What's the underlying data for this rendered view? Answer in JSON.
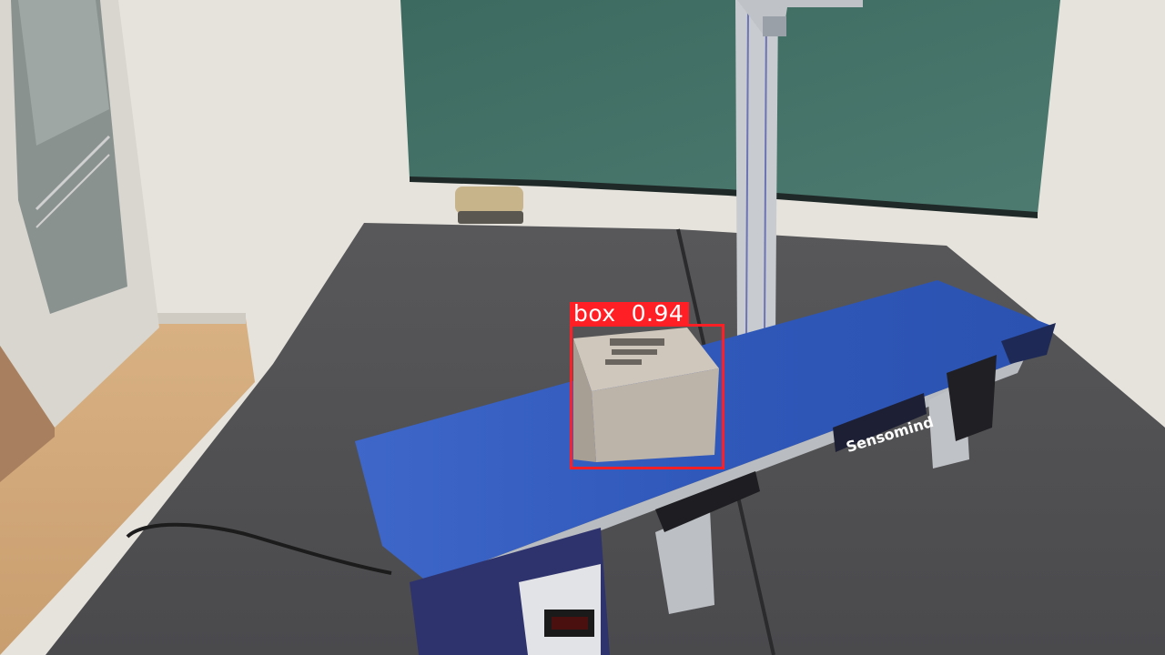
{
  "detection": {
    "class_label": "box",
    "confidence": "0.94",
    "color": "#ff1f24"
  },
  "scene": {
    "conveyor_brand": "Sensomind",
    "belt_color": "#2f5bc4"
  }
}
